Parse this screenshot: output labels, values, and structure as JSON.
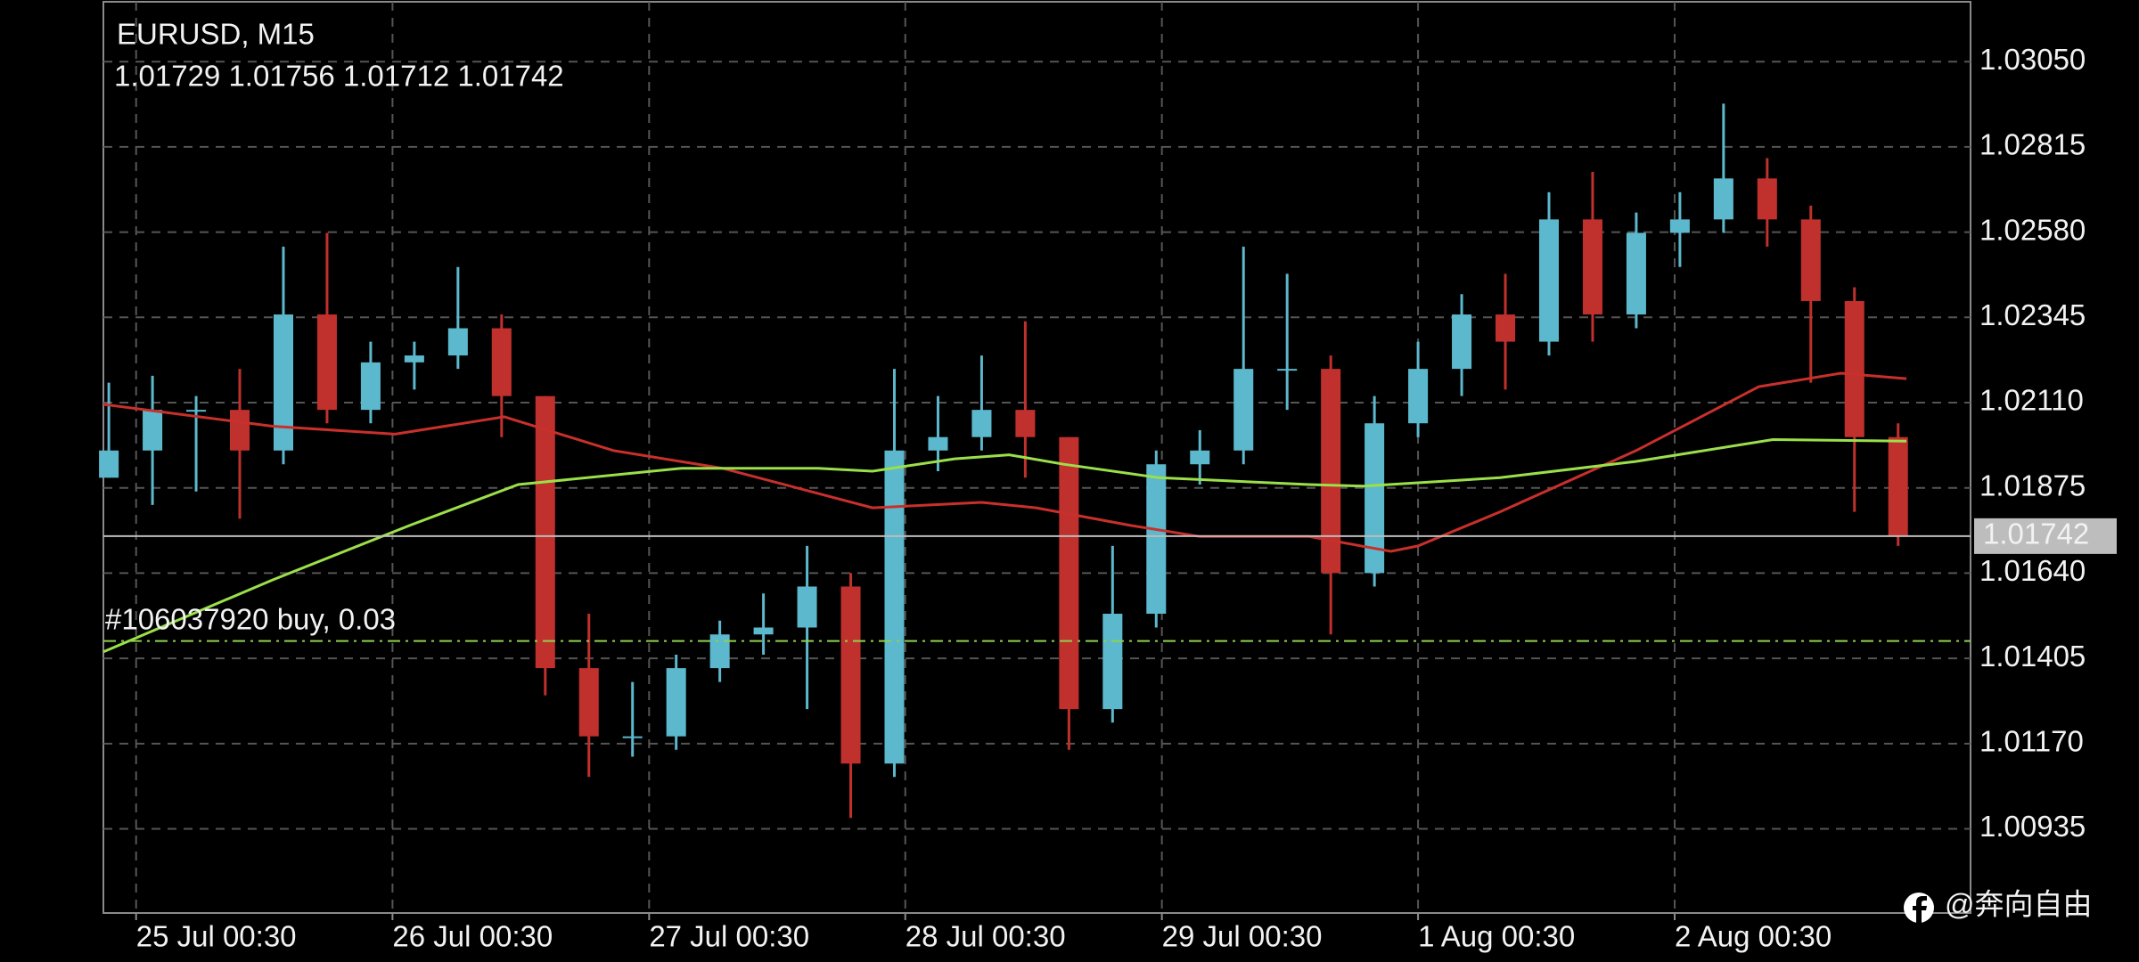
{
  "chart_data": {
    "type": "candlestick",
    "title": "EURUSD, M15",
    "subtitle": "1.01729 1.01756 1.01712 1.01742",
    "open": [
      1.01903,
      1.01978,
      1.0209,
      1.0209,
      1.01978,
      1.02353,
      1.0209,
      1.02221,
      1.0224,
      1.02315,
      1.02128,
      1.01378,
      1.0119,
      1.0119,
      1.01378,
      1.01471,
      1.0149,
      1.01603,
      1.01115,
      1.01978,
      1.02015,
      1.0209,
      1.02015,
      1.01265,
      1.01528,
      1.0194,
      1.01978,
      1.02203,
      1.02203,
      1.0164,
      1.02053,
      1.02203,
      1.02353,
      1.02278,
      1.02615,
      1.02353,
      1.02578,
      1.02615,
      1.02728,
      1.02615,
      1.0239,
      1.02015
    ],
    "high": [
      1.02165,
      1.02184,
      1.02128,
      1.02203,
      1.0254,
      1.02578,
      1.02278,
      1.02278,
      1.02484,
      1.02353,
      1.02128,
      1.01528,
      1.0134,
      1.01415,
      1.01509,
      1.01584,
      1.01715,
      1.0164,
      1.02203,
      1.02128,
      1.0224,
      1.02334,
      1.02015,
      1.01715,
      1.01978,
      1.02034,
      1.0254,
      1.02465,
      1.0224,
      1.02128,
      1.02278,
      1.02409,
      1.02465,
      1.0269,
      1.02746,
      1.02634,
      1.0269,
      1.02934,
      1.02784,
      1.02653,
      1.02428,
      1.02053
    ],
    "low": [
      1.01903,
      1.01828,
      1.01865,
      1.0179,
      1.0194,
      1.02053,
      1.02053,
      1.02146,
      1.02203,
      1.02015,
      1.01303,
      1.01078,
      1.01134,
      1.01153,
      1.0134,
      1.01415,
      1.01265,
      1.00965,
      1.01078,
      1.01921,
      1.01978,
      1.01903,
      1.01153,
      1.01228,
      1.0149,
      1.01884,
      1.0194,
      1.0209,
      1.01471,
      1.01603,
      1.02015,
      1.02128,
      1.02146,
      1.0224,
      1.02278,
      1.02315,
      1.02484,
      1.02578,
      1.0254,
      1.02165,
      1.01809,
      1.01715
    ],
    "close": [
      1.01978,
      1.0209,
      1.0209,
      1.01978,
      1.02353,
      1.0209,
      1.02221,
      1.0224,
      1.02315,
      1.02128,
      1.01378,
      1.0119,
      1.0119,
      1.01378,
      1.01471,
      1.0149,
      1.01603,
      1.01115,
      1.01978,
      1.02015,
      1.0209,
      1.02015,
      1.01265,
      1.01528,
      1.0194,
      1.01978,
      1.02203,
      1.02203,
      1.0164,
      1.02053,
      1.02203,
      1.02353,
      1.02278,
      1.02615,
      1.02353,
      1.02578,
      1.02615,
      1.02728,
      1.02615,
      1.0239,
      1.02015,
      1.01742
    ],
    "up_color": "#5cb8cc",
    "down_color": "#c0302c",
    "ylim": [
      1.00703,
      1.03215
    ],
    "yticks": [
      {
        "value": 1.0305,
        "label": "1.03050"
      },
      1.02815,
      {
        "value": 1.0258,
        "label": "1.02580"
      },
      1.02345,
      {
        "value": 1.0211,
        "label": "1.02110"
      },
      1.01875,
      {
        "value": 1.0164,
        "label": "1.01640"
      },
      1.01405,
      {
        "value": 1.0117,
        "label": "1.01170"
      },
      1.00935
    ],
    "xlim": [
      -0.125,
      42.66
    ],
    "xticks": [
      {
        "value": 0.625,
        "label": "25 Jul 00:30"
      },
      {
        "value": 6.5,
        "label": "26 Jul 00:30"
      },
      {
        "value": 12.38,
        "label": "27 Jul 00:30"
      },
      {
        "value": 18.25,
        "label": "28 Jul 00:30"
      },
      {
        "value": 24.13,
        "label": "29 Jul 00:30"
      },
      {
        "value": 30,
        "label": "1 Aug 00:30"
      },
      {
        "value": 35.88,
        "label": "2 Aug 00:30"
      }
    ],
    "grid": true,
    "series": [
      {
        "color": "#c8302c",
        "x": [
          -0.125,
          3.75,
          6.56,
          9.06,
          11.56,
          14.06,
          17.5,
          20,
          21.25,
          23.44,
          25,
          27.5,
          29.38,
          30,
          31.88,
          35,
          37.81,
          39.69,
          41.19
        ],
        "values": [
          1.02105,
          1.02045,
          1.02023,
          1.02071,
          1.01978,
          1.01929,
          1.0182,
          1.01835,
          1.0182,
          1.01771,
          1.01741,
          1.01741,
          1.017,
          1.01715,
          1.01809,
          1.01978,
          1.02154,
          1.02191,
          1.02176
        ]
      },
      {
        "color": "#9be04a",
        "x": [
          -0.125,
          3.75,
          6.88,
          9.38,
          13.13,
          16.25,
          17.5,
          19.38,
          20.63,
          21.88,
          24.06,
          27.5,
          28.75,
          31.88,
          35,
          38.13,
          41.19
        ],
        "values": [
          1.01423,
          1.01621,
          1.01771,
          1.01884,
          1.01929,
          1.01929,
          1.01921,
          1.01955,
          1.01966,
          1.0194,
          1.01903,
          1.01884,
          1.0188,
          1.01903,
          1.01948,
          1.02008,
          1.02004
        ]
      }
    ],
    "last_price": 1.01742,
    "last_price_color": "#bdbdbd",
    "order_line": {
      "label": "#106037920 buy, 0.03",
      "value": 1.01453,
      "color": "#8fd14f"
    },
    "watermark": "@奔向自由"
  }
}
